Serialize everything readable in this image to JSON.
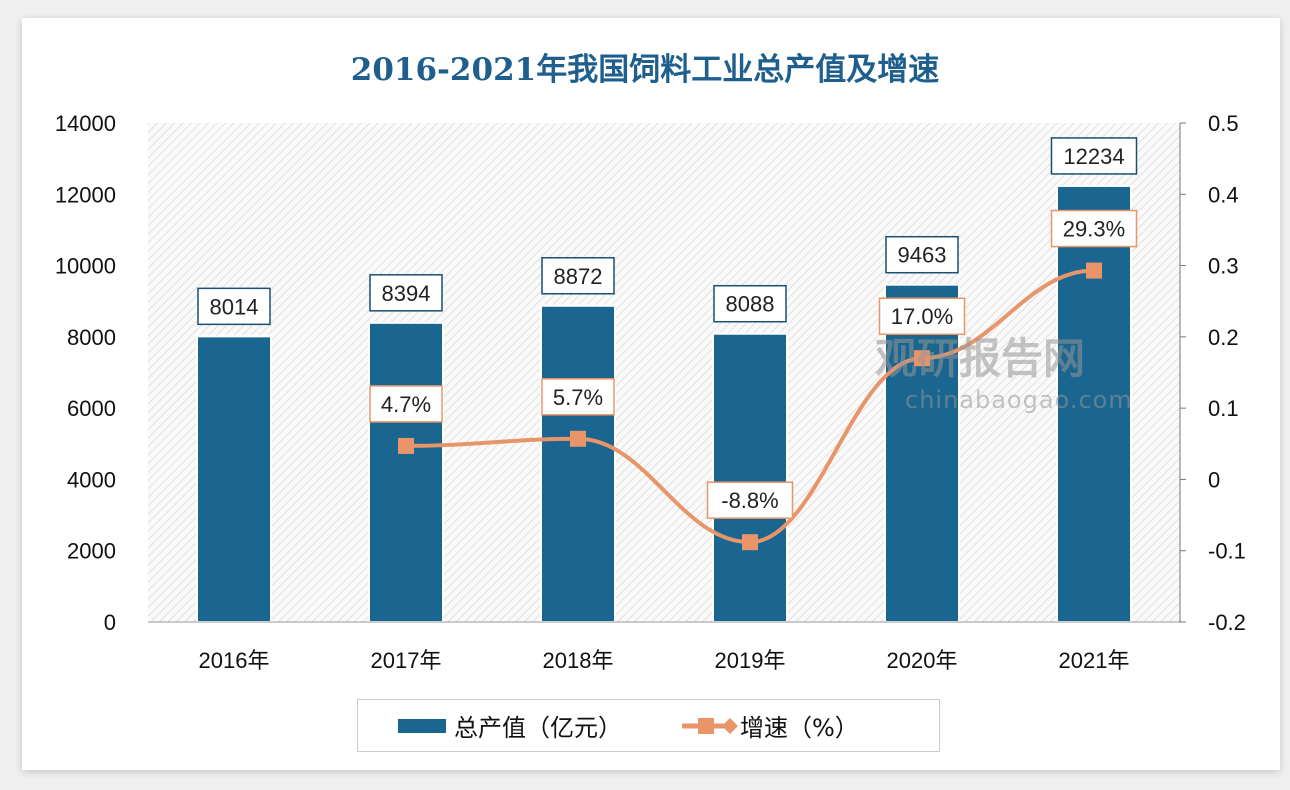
{
  "chart_data": {
    "type": "bar+line",
    "title": "2016-2021年我国饲料工业总产值及增速",
    "categories": [
      "2016年",
      "2017年",
      "2018年",
      "2019年",
      "2020年",
      "2021年"
    ],
    "series": [
      {
        "name": "总产值（亿元）",
        "type": "bar",
        "axis": "left",
        "values": [
          8014,
          8394,
          8872,
          8088,
          9463,
          12234
        ],
        "labels": [
          "8014",
          "8394",
          "8872",
          "8088",
          "9463",
          "12234"
        ],
        "color": "#1a6690"
      },
      {
        "name": "增速（%）",
        "type": "line",
        "axis": "right",
        "values": [
          null,
          0.047,
          0.057,
          -0.088,
          0.17,
          0.293
        ],
        "labels": [
          "",
          "4.7%",
          "5.7%",
          "-8.8%",
          "17.0%",
          "29.3%"
        ],
        "color": "#e8956a"
      }
    ],
    "y_left": {
      "range": [
        0,
        14000
      ],
      "ticks": [
        "0",
        "2000",
        "4000",
        "6000",
        "8000",
        "10000",
        "12000",
        "14000"
      ]
    },
    "y_right": {
      "range": [
        -0.2,
        0.5
      ],
      "ticks": [
        "-0.2",
        "-0.1",
        "0",
        "0.1",
        "0.2",
        "0.3",
        "0.4",
        "0.5"
      ]
    },
    "legend_position": "bottom"
  },
  "watermark": {
    "cn": "观研报告网",
    "en": "chinabaogao.com"
  }
}
